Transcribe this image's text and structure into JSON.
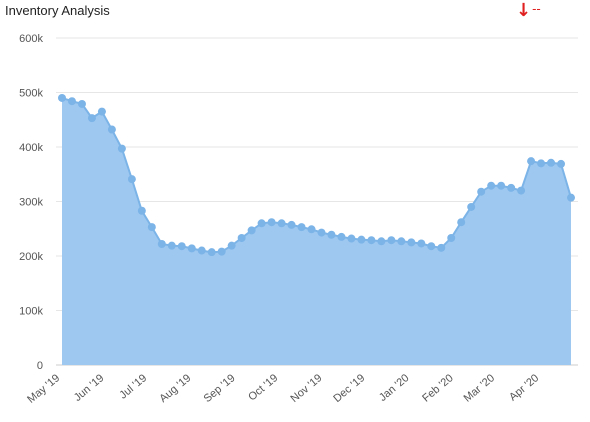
{
  "header": {
    "title": "Inventory Analysis",
    "trend_icon": "arrow-down-icon",
    "trend_arrow": "↓",
    "trend_value": "--",
    "trend_color": "#e02020"
  },
  "chart_data": {
    "type": "area",
    "title": "Inventory Analysis",
    "xlabel": "",
    "ylabel": "",
    "ylim": [
      0,
      600000
    ],
    "grid": true,
    "y_ticks": [
      "0",
      "100k",
      "200k",
      "300k",
      "400k",
      "500k",
      "600k"
    ],
    "x_ticks": [
      "May '19",
      "Jun '19",
      "Jul '19",
      "Aug '19",
      "Sep '19",
      "Oct '19",
      "Nov '19",
      "Dec '19",
      "Jan '20",
      "Feb '20",
      "Mar '20",
      "Apr '20"
    ],
    "x": [
      "2019-05-05",
      "2019-05-12",
      "2019-05-19",
      "2019-05-26",
      "2019-06-02",
      "2019-06-09",
      "2019-06-16",
      "2019-06-23",
      "2019-06-30",
      "2019-07-07",
      "2019-07-14",
      "2019-07-21",
      "2019-07-28",
      "2019-08-04",
      "2019-08-11",
      "2019-08-18",
      "2019-08-25",
      "2019-09-01",
      "2019-09-08",
      "2019-09-15",
      "2019-09-22",
      "2019-09-29",
      "2019-10-06",
      "2019-10-13",
      "2019-10-20",
      "2019-10-27",
      "2019-11-03",
      "2019-11-10",
      "2019-11-17",
      "2019-11-24",
      "2019-12-01",
      "2019-12-08",
      "2019-12-15",
      "2019-12-22",
      "2019-12-29",
      "2020-01-05",
      "2020-01-12",
      "2020-01-19",
      "2020-01-26",
      "2020-02-02",
      "2020-02-09",
      "2020-02-16",
      "2020-02-23",
      "2020-03-01",
      "2020-03-08",
      "2020-03-15",
      "2020-03-22",
      "2020-03-29",
      "2020-04-05",
      "2020-04-12",
      "2020-04-19",
      "2020-04-26"
    ],
    "values": [
      490000,
      484000,
      479000,
      453000,
      465000,
      432000,
      397000,
      341000,
      283000,
      253000,
      222000,
      219000,
      218000,
      214000,
      210000,
      207000,
      208000,
      219000,
      233000,
      247000,
      260000,
      262000,
      260000,
      257000,
      253000,
      249000,
      243000,
      239000,
      235000,
      232000,
      230000,
      229000,
      227000,
      229000,
      227000,
      225000,
      223000,
      218000,
      215000,
      233000,
      262000,
      290000,
      318000,
      329000,
      329000,
      325000,
      320000,
      374000,
      370000,
      371000,
      369000,
      307000
    ],
    "series_color": "#7cb4e8",
    "fill_color": "#9ec8f0"
  }
}
